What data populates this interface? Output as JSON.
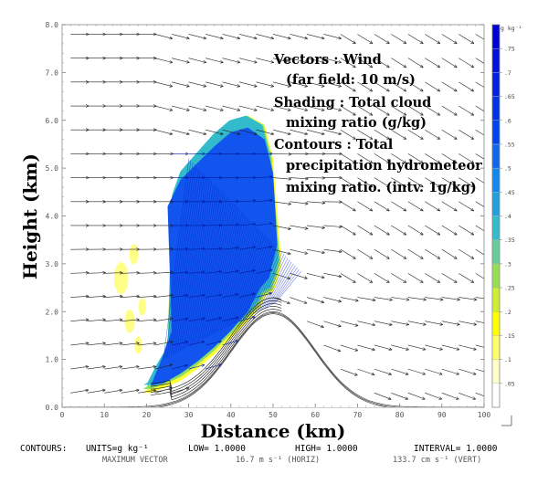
{
  "chart_data": {
    "type": "vector-field with filled contours",
    "xlabel": "Distance (km)",
    "ylabel": "Height (km)",
    "xlim": [
      0,
      100
    ],
    "ylim": [
      0,
      8
    ],
    "x_ticks": [
      "0",
      "10",
      "20",
      "30",
      "40",
      "50",
      "60",
      "70",
      "80",
      "90",
      "100"
    ],
    "y_ticks": [
      "0.0",
      "1.0",
      "2.0",
      "3.0",
      "4.0",
      "5.0",
      "6.0",
      "7.0",
      "8.0"
    ],
    "annotations": [
      "Vectors : Wind",
      "(far field: 10 m/s)",
      "Shading : Total cloud",
      "mixing ratio (g/kg)",
      "Contours : Total",
      "precipitation hydrometeor",
      "mixing ratio. (intv. 1g/kg)"
    ],
    "colorbar": {
      "units": "g kg⁻¹",
      "ticks": [
        ".05",
        ".1",
        ".15",
        ".2",
        ".25",
        ".3",
        ".35",
        ".4",
        ".45",
        ".5",
        ".55",
        ".6",
        ".65",
        ".7",
        ".75"
      ],
      "colors": [
        "#ffffff",
        "#ffffcc",
        "#ffff66",
        "#ffff00",
        "#ccee33",
        "#99dd55",
        "#66cc99",
        "#33bbcc",
        "#22a0dd",
        "#1188ee",
        "#1166ee",
        "#0044ee",
        "#0033e6",
        "#0022dd",
        "#0011d8",
        "#0000d0"
      ]
    },
    "terrain": {
      "description": "Gaussian-shaped hill",
      "center_km": 50,
      "peak_height_km": 2.0,
      "x": [
        0,
        10,
        20,
        25,
        30,
        35,
        40,
        45,
        50,
        55,
        60,
        65,
        70,
        75,
        80,
        90,
        100
      ],
      "y": [
        0.0,
        0.01,
        0.08,
        0.2,
        0.42,
        0.75,
        1.15,
        1.62,
        2.0,
        1.62,
        1.15,
        0.75,
        0.42,
        0.2,
        0.08,
        0.01,
        0.0
      ]
    },
    "cloud_region": {
      "outline_x": [
        20,
        22,
        24,
        25,
        26,
        28,
        32,
        36,
        40,
        44,
        48,
        50,
        52,
        51,
        50,
        48,
        47,
        44,
        40,
        36,
        32,
        28,
        24,
        21,
        19
      ],
      "outline_y": [
        0.35,
        0.7,
        1.0,
        1.3,
        4.4,
        4.9,
        5.3,
        5.7,
        6.0,
        6.1,
        5.9,
        5.2,
        3.0,
        2.65,
        2.4,
        2.3,
        2.1,
        1.8,
        1.45,
        1.1,
        0.8,
        0.55,
        0.4,
        0.3,
        0.3
      ]
    }
  },
  "footer": {
    "contours_label": "CONTOURS:",
    "units": "UNITS=g kg⁻¹",
    "low": "LOW=   1.0000",
    "high": "HIGH=   1.0000",
    "interval": "INTERVAL=     1.0000",
    "max_vector_label": "MAXIMUM VECTOR",
    "horiz": "16.7 m s⁻¹ (HORIZ)",
    "vert": "133.7 cm s⁻¹ (VERT)"
  }
}
